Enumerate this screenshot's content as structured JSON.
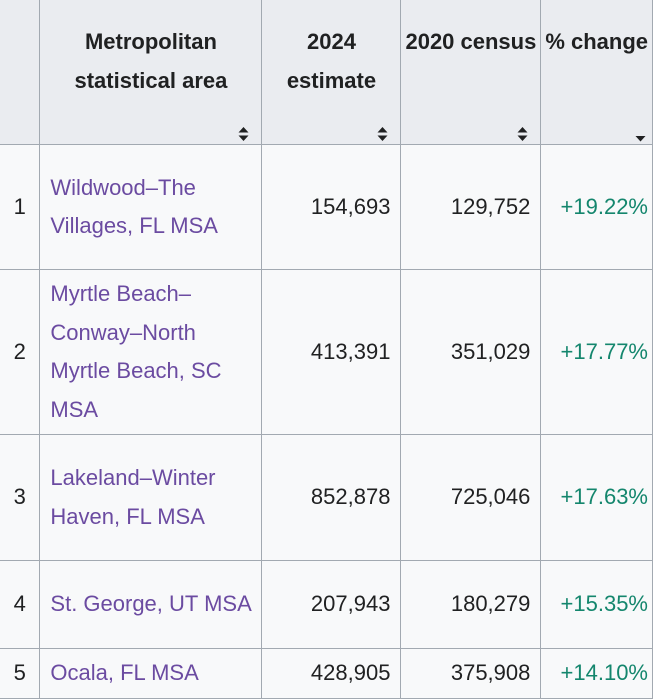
{
  "table": {
    "headers": {
      "rank": "",
      "area": "Metropolitan statistical area",
      "estimate": "2024 estimate",
      "census": "2020 census",
      "change": "% change"
    },
    "rows": [
      {
        "rank": "1",
        "area": "Wildwood–The Villages, FL MSA",
        "estimate": "154,693",
        "census": "129,752",
        "change": "+19.22%"
      },
      {
        "rank": "2",
        "area": "Myrtle Beach–Conway–North Myrtle Beach, SC MSA",
        "estimate": "413,391",
        "census": "351,029",
        "change": "+17.77%"
      },
      {
        "rank": "3",
        "area": "Lakeland–Winter Haven, FL MSA",
        "estimate": "852,878",
        "census": "725,046",
        "change": "+17.63%"
      },
      {
        "rank": "4",
        "area": "St. George, UT MSA",
        "estimate": "207,943",
        "census": "180,279",
        "change": "+15.35%"
      },
      {
        "rank": "5",
        "area": "Ocala, FL MSA",
        "estimate": "428,905",
        "census": "375,908",
        "change": "+14.10%"
      }
    ]
  },
  "colors": {
    "link": "#6b4ba1",
    "positive_change": "#14866d",
    "header_bg": "#eaecf0",
    "cell_bg": "#f8f9fa",
    "border": "#a2a9b1"
  },
  "icons": {
    "sort_unsorted": "sort-both-icon",
    "sort_descending": "sort-down-icon"
  }
}
